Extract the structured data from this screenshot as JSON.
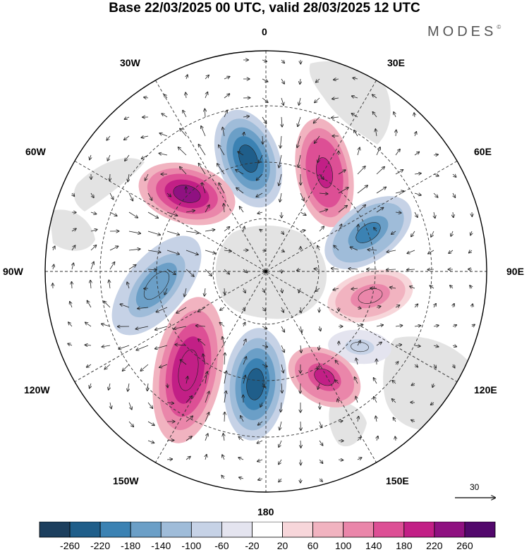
{
  "title": "Base 22/03/2025 00 UTC, valid 28/03/2025 12 UTC",
  "brand": "MODES",
  "brand_mark": "©",
  "longitude_labels": {
    "top": "0",
    "e30": "30E",
    "e60": "60E",
    "e90": "90E",
    "e120": "120E",
    "e150": "150E",
    "bottom": "180",
    "w150": "150W",
    "w120": "120W",
    "w90": "90W",
    "w60": "60W",
    "w30": "30W"
  },
  "reference_vector": "30",
  "colorbar": {
    "ticks": [
      "-260",
      "-220",
      "-180",
      "-140",
      "-100",
      "-60",
      "-20",
      "20",
      "60",
      "100",
      "140",
      "180",
      "220",
      "260"
    ],
    "colors": [
      "#1c3f5e",
      "#1f5e8a",
      "#3b82b3",
      "#6b9fc7",
      "#9fbcd9",
      "#c6d2e6",
      "#e4e4ef",
      "#ffffff",
      "#f7d6da",
      "#f1b3c0",
      "#ea86aa",
      "#dd4f95",
      "#c21f86",
      "#8f1181",
      "#52086c"
    ]
  },
  "anomaly_centers": [
    {
      "sign": "negative",
      "value": -240
    },
    {
      "sign": "positive",
      "value": 210
    },
    {
      "sign": "positive",
      "value": 230
    },
    {
      "sign": "negative",
      "value": -200
    },
    {
      "sign": "positive",
      "value": 140
    },
    {
      "sign": "negative",
      "value": -80
    },
    {
      "sign": "positive",
      "value": 200
    },
    {
      "sign": "negative",
      "value": -220
    },
    {
      "sign": "positive",
      "value": 220
    },
    {
      "sign": "negative",
      "value": -170
    }
  ]
}
